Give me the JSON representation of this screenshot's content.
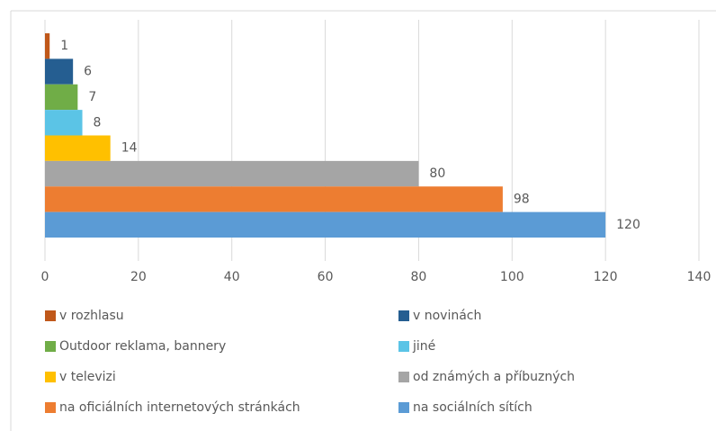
{
  "chart_data": {
    "type": "bar",
    "orientation": "horizontal",
    "categories": [
      "v rozhlasu",
      "v novinách",
      "Outdoor reklama, bannery",
      "jiné",
      "v televizi",
      "od známých a příbuzných",
      "na oficiálních internetových stránkách",
      "na sociálních sítích"
    ],
    "values": [
      1,
      6,
      7,
      8,
      14,
      80,
      98,
      120
    ],
    "colors": [
      "#c0581a",
      "#255e91",
      "#70ad47",
      "#5bc4e6",
      "#ffc000",
      "#a5a5a5",
      "#ed7d31",
      "#5b9bd5"
    ],
    "xlim": [
      0,
      140
    ],
    "xticks": [
      0,
      20,
      40,
      60,
      80,
      100,
      120,
      140
    ],
    "grid": true,
    "legend": "bottom"
  }
}
